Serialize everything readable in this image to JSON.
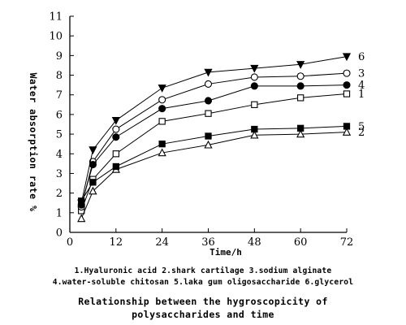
{
  "chart_data": {
    "type": "line",
    "x": [
      3,
      6,
      12,
      24,
      36,
      48,
      60,
      72
    ],
    "series": [
      {
        "name": "1",
        "marker": "open-square",
        "values": [
          1.1,
          2.7,
          4.0,
          5.65,
          6.05,
          6.5,
          6.85,
          7.05
        ]
      },
      {
        "name": "2",
        "marker": "open-triangle",
        "values": [
          0.7,
          2.1,
          3.2,
          4.05,
          4.45,
          4.95,
          5.0,
          5.1
        ]
      },
      {
        "name": "3",
        "marker": "open-circle",
        "values": [
          1.3,
          3.6,
          5.25,
          6.75,
          7.55,
          7.9,
          7.95,
          8.1
        ]
      },
      {
        "name": "4",
        "marker": "filled-circle",
        "values": [
          1.4,
          3.45,
          4.85,
          6.3,
          6.7,
          7.45,
          7.45,
          7.5
        ]
      },
      {
        "name": "5",
        "marker": "filled-square",
        "values": [
          1.6,
          2.55,
          3.35,
          4.5,
          4.9,
          5.25,
          5.3,
          5.4
        ]
      },
      {
        "name": "6",
        "marker": "filled-triangle-down",
        "values": [
          1.5,
          4.2,
          5.7,
          7.35,
          8.15,
          8.35,
          8.55,
          8.95
        ]
      }
    ],
    "xlabel": "Time/h",
    "ylabel": "Water absorption rate %",
    "xlim": [
      0,
      72
    ],
    "ylim": [
      0,
      11
    ],
    "xticks": [
      "0",
      "12",
      "24",
      "36",
      "48",
      "60",
      "72"
    ],
    "yticks": [
      "0",
      "1",
      "2",
      "3",
      "4",
      "5",
      "6",
      "7",
      "8",
      "9",
      "10",
      "11"
    ],
    "grid": false,
    "legend_lines": [
      "1.Hyaluronic acid 2.shark cartilage 3.sodium alginate",
      "4.water-soluble chitosan 5.laka gum oligosaccharide 6.glycerol"
    ],
    "title_lines": [
      "Relationship between the hygroscopicity of",
      "polysaccharides and time"
    ]
  }
}
